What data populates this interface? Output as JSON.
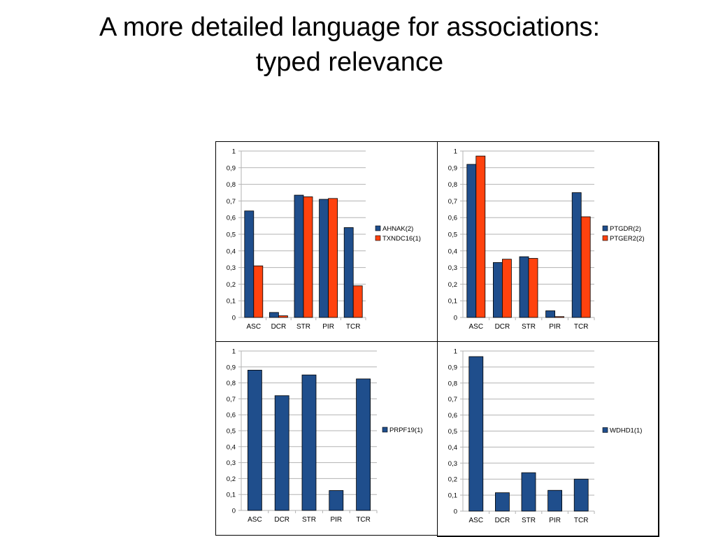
{
  "slide": {
    "title_line1": "A more detailed language for associations:",
    "title_line2": "typed relevance"
  },
  "colors": {
    "series_blue": "#1f4e8c",
    "series_orange": "#ff420e",
    "grid": "#b3b3b3",
    "axis": "#b3b3b3"
  },
  "chart_data": [
    {
      "type": "bar",
      "categories": [
        "ASC",
        "DCR",
        "STR",
        "PIR",
        "TCR"
      ],
      "series": [
        {
          "name": "AHNAK(2)",
          "values": [
            0.64,
            0.03,
            0.735,
            0.71,
            0.54
          ],
          "color": "#1f4e8c"
        },
        {
          "name": "TXNDC16(1)",
          "values": [
            0.31,
            0.01,
            0.725,
            0.715,
            0.19
          ],
          "color": "#ff420e"
        }
      ],
      "ylim": [
        0,
        1
      ],
      "yticks": [
        "0",
        "0,1",
        "0,2",
        "0,3",
        "0,4",
        "0,5",
        "0,6",
        "0,7",
        "0,8",
        "0,9",
        "1"
      ],
      "grid": true,
      "legend": "right"
    },
    {
      "type": "bar",
      "categories": [
        "ASC",
        "DCR",
        "STR",
        "PIR",
        "TCR"
      ],
      "series": [
        {
          "name": "PTGDR(2)",
          "values": [
            0.92,
            0.33,
            0.365,
            0.04,
            0.75
          ],
          "color": "#1f4e8c"
        },
        {
          "name": "PTGER2(2)",
          "values": [
            0.97,
            0.35,
            0.355,
            0.005,
            0.605
          ],
          "color": "#ff420e"
        }
      ],
      "ylim": [
        0,
        1
      ],
      "yticks": [
        "0",
        "0,1",
        "0,2",
        "0,3",
        "0,4",
        "0,5",
        "0,6",
        "0,7",
        "0,8",
        "0,9",
        "1"
      ],
      "grid": true,
      "legend": "right"
    },
    {
      "type": "bar",
      "categories": [
        "ASC",
        "DCR",
        "STR",
        "PIR",
        "TCR"
      ],
      "series": [
        {
          "name": "PRPF19(1)",
          "values": [
            0.88,
            0.72,
            0.85,
            0.125,
            0.825
          ],
          "color": "#1f4e8c"
        }
      ],
      "ylim": [
        0,
        1
      ],
      "yticks": [
        "0",
        "0,1",
        "0,2",
        "0,3",
        "0,4",
        "0,5",
        "0,6",
        "0,7",
        "0,8",
        "0,9",
        "1"
      ],
      "grid": true,
      "legend": "right"
    },
    {
      "type": "bar",
      "categories": [
        "ASC",
        "DCR",
        "STR",
        "PIR",
        "TCR"
      ],
      "series": [
        {
          "name": "WDHD1(1)",
          "values": [
            0.965,
            0.115,
            0.24,
            0.13,
            0.2
          ],
          "color": "#1f4e8c"
        }
      ],
      "ylim": [
        0,
        1
      ],
      "yticks": [
        "0",
        "0,1",
        "0,2",
        "0,3",
        "0,4",
        "0,5",
        "0,6",
        "0,7",
        "0,8",
        "0,9",
        "1"
      ],
      "grid": true,
      "legend": "right"
    }
  ]
}
